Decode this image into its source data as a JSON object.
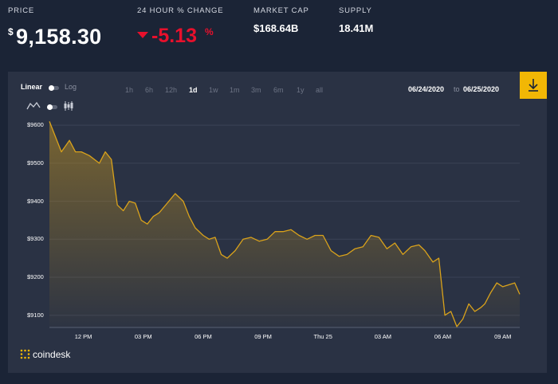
{
  "header": {
    "price_label": "PRICE",
    "price_currency": "$",
    "price_value": "9,158.30",
    "change_label": "24 HOUR % CHANGE",
    "change_value": "-5.13",
    "change_unit": "%",
    "marketcap_label": "MARKET CAP",
    "marketcap_value": "$168.64B",
    "supply_label": "SUPPLY",
    "supply_value": "18.41M"
  },
  "controls": {
    "scale_linear": "Linear",
    "scale_log": "Log",
    "ranges": [
      "1h",
      "6h",
      "12h",
      "1d",
      "1w",
      "1m",
      "3m",
      "6m",
      "1y",
      "all"
    ],
    "active_range": "1d",
    "date_from": "06/24/2020",
    "date_sep": "to",
    "date_to": "06/25/2020"
  },
  "brand": {
    "logo_text": "coindesk"
  },
  "colors": {
    "background": "#1b2436",
    "panel": "#2a3244",
    "line": "#d9a21b",
    "negative": "#e8102c",
    "accent": "#f2b705"
  },
  "chart_data": {
    "type": "area",
    "xlabel": "",
    "ylabel": "",
    "ylim": [
      9070,
      9615
    ],
    "y_ticks": [
      "$9100",
      "$9200",
      "$9300",
      "$9400",
      "$9500",
      "$9600"
    ],
    "x_ticks": [
      "12 PM",
      "03 PM",
      "06 PM",
      "09 PM",
      "Thu 25",
      "03 AM",
      "06 AM",
      "09 AM"
    ],
    "x_tick_hours": [
      12,
      15,
      18,
      21,
      24,
      27,
      30,
      33
    ],
    "x_hours": [
      10.3,
      10.9,
      11.3,
      11.6,
      11.9,
      12.3,
      12.8,
      13.1,
      13.4,
      13.7,
      14.0,
      14.3,
      14.6,
      14.9,
      15.2,
      15.5,
      15.8,
      16.2,
      16.6,
      17.0,
      17.3,
      17.6,
      18.0,
      18.3,
      18.6,
      18.9,
      19.2,
      19.6,
      20.0,
      20.4,
      20.8,
      21.2,
      21.6,
      22.0,
      22.4,
      22.8,
      23.2,
      23.6,
      24.0,
      24.4,
      24.8,
      25.2,
      25.6,
      26.0,
      26.4,
      26.8,
      27.2,
      27.6,
      28.0,
      28.4,
      28.8,
      29.1,
      29.5,
      29.8,
      30.1,
      30.4,
      30.7,
      31.0,
      31.3,
      31.6,
      31.9,
      32.1,
      32.4,
      32.7,
      33.0,
      33.3,
      33.6,
      33.85
    ],
    "values": [
      9610,
      9530,
      9560,
      9530,
      9530,
      9520,
      9500,
      9530,
      9510,
      9390,
      9375,
      9400,
      9395,
      9350,
      9340,
      9360,
      9370,
      9395,
      9420,
      9400,
      9360,
      9330,
      9310,
      9300,
      9305,
      9260,
      9250,
      9270,
      9300,
      9305,
      9295,
      9300,
      9320,
      9320,
      9325,
      9310,
      9300,
      9310,
      9310,
      9270,
      9255,
      9260,
      9275,
      9280,
      9310,
      9305,
      9275,
      9290,
      9260,
      9280,
      9285,
      9270,
      9240,
      9250,
      9100,
      9110,
      9070,
      9090,
      9130,
      9110,
      9120,
      9130,
      9160,
      9185,
      9175,
      9180,
      9185,
      9155
    ]
  }
}
